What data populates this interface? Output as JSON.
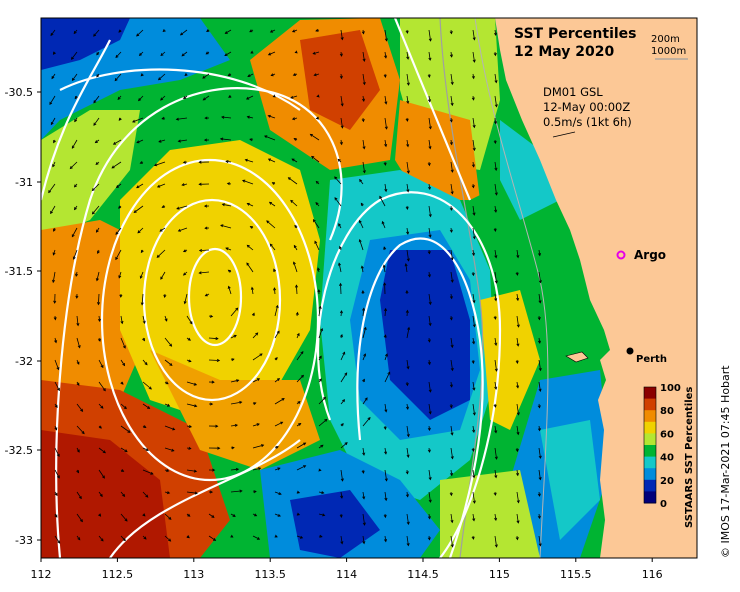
{
  "title": {
    "line1": "SST Percentiles",
    "line2": "12 May 2020"
  },
  "depth_legend": {
    "shallow": "200m",
    "deep": "1000m"
  },
  "current_info": {
    "model": "DM01 GSL",
    "time": "12-May 00:00Z",
    "scale": "0.5m/s (1kt 6h)"
  },
  "axes": {
    "x_ticks": [
      "112",
      "112.5",
      "113",
      "113.5",
      "114",
      "114.5",
      "115",
      "115.5",
      "116"
    ],
    "y_ticks": [
      "-30.5",
      "-31",
      "-31.5",
      "-32",
      "-32.5",
      "-33"
    ]
  },
  "places": {
    "argo": "Argo",
    "perth": "Perth"
  },
  "colorbar": {
    "label": "SSTAARS SST Percentiles",
    "ticks": [
      "100",
      "80",
      "60",
      "40",
      "20",
      "0"
    ],
    "colors": [
      "#8b0000",
      "#d04000",
      "#f08c00",
      "#f0d200",
      "#b4e632",
      "#00b432",
      "#14c8c8",
      "#008cdc",
      "#0028b4",
      "#00007a"
    ]
  },
  "credit": "© IMOS 17-Mar-2021 07:45 Hobart",
  "colors": {
    "land": "#fcc896",
    "argo_marker": "#e600e6",
    "contour": "#ffffff",
    "isobath": "#a0a0a0"
  }
}
